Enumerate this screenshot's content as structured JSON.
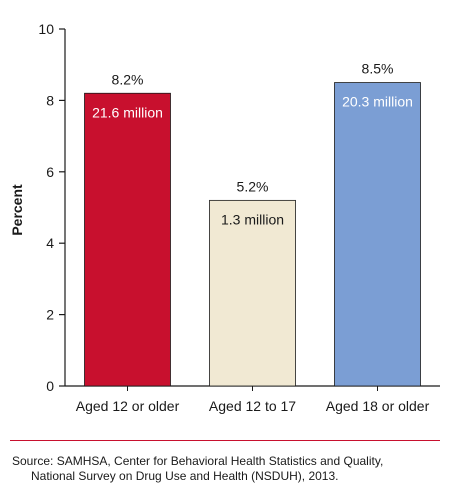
{
  "chart_data": {
    "type": "bar",
    "title": "",
    "xlabel": "",
    "ylabel": "Percent",
    "ylim": [
      0,
      10
    ],
    "yticks": [
      0,
      2,
      4,
      6,
      8,
      10
    ],
    "grid": false,
    "categories": [
      "Aged 12 or older",
      "Aged 12 to 17",
      "Aged 18 or older"
    ],
    "values": [
      8.2,
      5.2,
      8.5
    ],
    "value_labels": [
      "8.2%",
      "5.2%",
      "8.5%"
    ],
    "inner_labels": [
      "21.6 million",
      "1.3 million",
      "20.3 million"
    ],
    "bar_colors": [
      "#c8102e",
      "#f1e9d3",
      "#7b9ed4"
    ],
    "inner_label_colors": [
      "#ffffff",
      "#1a1a1a",
      "#ffffff"
    ]
  },
  "footer": {
    "divider_color": "#c8102e",
    "source_lines": [
      "Source: SAMHSA, Center for Behavioral Health Statistics and Quality,",
      "National Survey on Drug Use and Health (NSDUH), 2013."
    ]
  }
}
